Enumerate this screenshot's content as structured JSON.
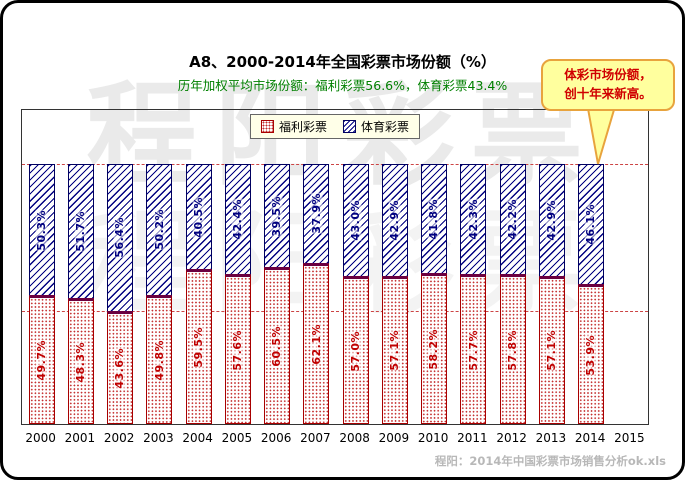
{
  "title": "A8、2000-2014年全国彩票市场份额（%）",
  "subtitle": "历年加权平均市场份额：福利彩票56.6%，体育彩票43.4%",
  "watermark_text": "程阳彩票",
  "callout": {
    "line1": "体彩市场份额，",
    "line2": "创十年来新高。"
  },
  "footer": "程阳：2014年中国彩票市场销售分析ok.xls",
  "colors": {
    "welfare_red": "#C00000",
    "sports_navy": "#000080",
    "boundary_maroon": "#6B0040",
    "subtitle_green": "#008000",
    "gridline_red": "#CC4444",
    "callout_bg": "#FFFF9E",
    "callout_border": "#E8A33D",
    "callout_text": "#D00000",
    "footer_gray": "#B8B8B8",
    "legend_bg": "#FFFFE8"
  },
  "chart_data": {
    "type": "bar",
    "stacked": true,
    "title": "A8、2000-2014年全国彩票市场份额（%）",
    "subtitle": "历年加权平均市场份额：福利彩票56.6%，体育彩票43.4%",
    "categories": [
      "2000",
      "2001",
      "2002",
      "2003",
      "2004",
      "2005",
      "2006",
      "2007",
      "2008",
      "2009",
      "2010",
      "2011",
      "2012",
      "2013",
      "2014"
    ],
    "x_axis_ticks": [
      "2000",
      "2001",
      "2002",
      "2003",
      "2004",
      "2005",
      "2006",
      "2007",
      "2008",
      "2009",
      "2010",
      "2011",
      "2012",
      "2013",
      "2014",
      "2015"
    ],
    "series": [
      {
        "name": "福利彩票",
        "color": "#C00000",
        "hatch": "dots",
        "values": [
          49.7,
          48.3,
          43.6,
          49.8,
          59.5,
          57.6,
          60.5,
          62.1,
          57.0,
          57.1,
          58.2,
          57.7,
          57.8,
          57.1,
          53.9
        ]
      },
      {
        "name": "体育彩票",
        "color": "#000080",
        "hatch": "diagonal",
        "values": [
          50.3,
          51.7,
          56.4,
          50.2,
          40.5,
          42.4,
          39.5,
          37.9,
          43.0,
          42.9,
          41.8,
          42.3,
          42.2,
          42.9,
          46.1
        ]
      }
    ],
    "unit": "%",
    "xlabel": "",
    "ylabel": "",
    "ylim": [
      0,
      120
    ],
    "y_axis_labels_visible": false,
    "reference_lines": [
      100,
      43.4
    ],
    "legend_position": "top-center",
    "value_labels": "rotated-vertical-inside-segments",
    "annotation": {
      "text": "体彩市场份额，创十年来新高。",
      "points_to_category": "2014"
    }
  }
}
